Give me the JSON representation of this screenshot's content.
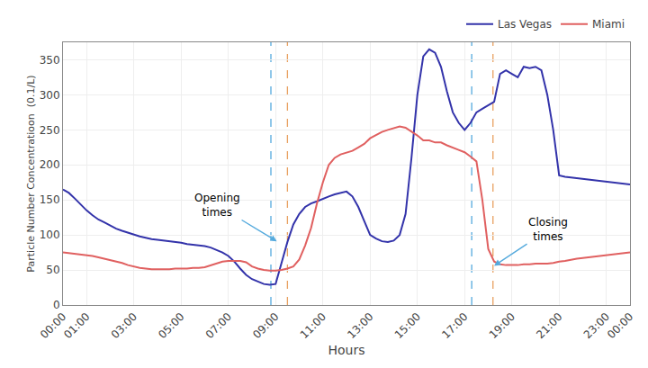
{
  "chart_data": {
    "type": "line",
    "xlabel": "Hours",
    "ylabel": "Particle Number Concentratioon  (0.1/L)",
    "xlim": [
      0,
      24
    ],
    "xticks": [
      {
        "value": 0,
        "label": "00:00"
      },
      {
        "value": 1,
        "label": "01:00"
      },
      {
        "value": 3,
        "label": "03:00"
      },
      {
        "value": 5,
        "label": "05:00"
      },
      {
        "value": 7,
        "label": "07:00"
      },
      {
        "value": 9,
        "label": "09:00"
      },
      {
        "value": 11,
        "label": "11:00"
      },
      {
        "value": 13,
        "label": "13:00"
      },
      {
        "value": 15,
        "label": "15:00"
      },
      {
        "value": 17,
        "label": "17:00"
      },
      {
        "value": 19,
        "label": "19:00"
      },
      {
        "value": 21,
        "label": "21:00"
      },
      {
        "value": 23,
        "label": "23:00"
      },
      {
        "value": 24,
        "label": "00:00"
      }
    ],
    "ylim": [
      0,
      375
    ],
    "yticks": [
      0,
      50,
      100,
      150,
      200,
      250,
      300,
      350
    ],
    "grid": true,
    "legend": "upper right",
    "x": [
      0,
      0.25,
      0.5,
      0.75,
      1.0,
      1.25,
      1.5,
      1.75,
      2.0,
      2.25,
      2.5,
      2.75,
      3.0,
      3.25,
      3.5,
      3.75,
      4.0,
      4.25,
      4.5,
      4.75,
      5.0,
      5.25,
      5.5,
      5.75,
      6.0,
      6.25,
      6.5,
      6.75,
      7.0,
      7.25,
      7.5,
      7.75,
      8.0,
      8.25,
      8.5,
      8.75,
      9.0,
      9.25,
      9.5,
      9.75,
      10.0,
      10.25,
      10.5,
      10.75,
      11.0,
      11.25,
      11.5,
      11.75,
      12.0,
      12.25,
      12.5,
      12.75,
      13.0,
      13.25,
      13.5,
      13.75,
      14.0,
      14.25,
      14.5,
      14.75,
      15.0,
      15.25,
      15.5,
      15.75,
      16.0,
      16.25,
      16.5,
      16.75,
      17.0,
      17.25,
      17.5,
      17.75,
      18.0,
      18.25,
      18.5,
      18.75,
      19.0,
      19.25,
      19.5,
      19.75,
      20.0,
      20.25,
      20.5,
      20.75,
      21.0,
      21.25,
      21.5,
      21.75,
      22.0,
      22.25,
      22.5,
      22.75,
      23.0,
      23.25,
      23.5,
      23.75,
      24.0
    ],
    "series": [
      {
        "name": "Las Vegas",
        "color": "#3333aa",
        "values": [
          165,
          160,
          152,
          143,
          135,
          128,
          122,
          118,
          113,
          109,
          106,
          103,
          100,
          98,
          96,
          94,
          93,
          92,
          91,
          90,
          89,
          87,
          86,
          85,
          84,
          82,
          79,
          75,
          70,
          62,
          52,
          43,
          37,
          33,
          30,
          29,
          30,
          60,
          90,
          115,
          130,
          140,
          145,
          148,
          152,
          155,
          158,
          160,
          162,
          155,
          140,
          120,
          100,
          95,
          91,
          90,
          92,
          100,
          130,
          210,
          300,
          355,
          365,
          360,
          340,
          305,
          275,
          260,
          250,
          260,
          275,
          280,
          285,
          290,
          330,
          335,
          330,
          325,
          340,
          338,
          340,
          335,
          300,
          250,
          185,
          183,
          182,
          181,
          180,
          179,
          178,
          177,
          176,
          175,
          174,
          173,
          172
        ]
      },
      {
        "name": "Miami",
        "color": "#e06060",
        "values": [
          75,
          74,
          73,
          72,
          71,
          70,
          68,
          66,
          64,
          62,
          60,
          57,
          55,
          53,
          52,
          51,
          51,
          51,
          51,
          52,
          52,
          52,
          53,
          53,
          54,
          57,
          60,
          62,
          63,
          63,
          63,
          61,
          55,
          52,
          50,
          49,
          49,
          50,
          52,
          55,
          65,
          85,
          110,
          145,
          175,
          200,
          210,
          215,
          218,
          220,
          225,
          230,
          238,
          243,
          247,
          250,
          253,
          255,
          253,
          248,
          242,
          235,
          235,
          232,
          232,
          228,
          225,
          222,
          218,
          212,
          205,
          150,
          80,
          62,
          58,
          57,
          57,
          57,
          58,
          58,
          59,
          59,
          59,
          60,
          62,
          63,
          65,
          66,
          67,
          68,
          69,
          70,
          71,
          72,
          73,
          74,
          75
        ]
      }
    ],
    "vlines": [
      {
        "x": 8.8,
        "color": "#55aadd",
        "line_style": "dashed"
      },
      {
        "x": 9.5,
        "color": "#e8a060",
        "line_style": "dashed"
      },
      {
        "x": 17.3,
        "color": "#55aadd",
        "line_style": "dashed"
      },
      {
        "x": 18.2,
        "color": "#e8a060",
        "line_style": "dashed"
      }
    ],
    "annotations": [
      {
        "text": "Opening\ntimes",
        "x": 9.05,
        "y": 91,
        "color": "#55aadd"
      },
      {
        "text": "Closing\ntimes",
        "x": 18.25,
        "y": 56,
        "color": "#55aadd"
      }
    ]
  }
}
